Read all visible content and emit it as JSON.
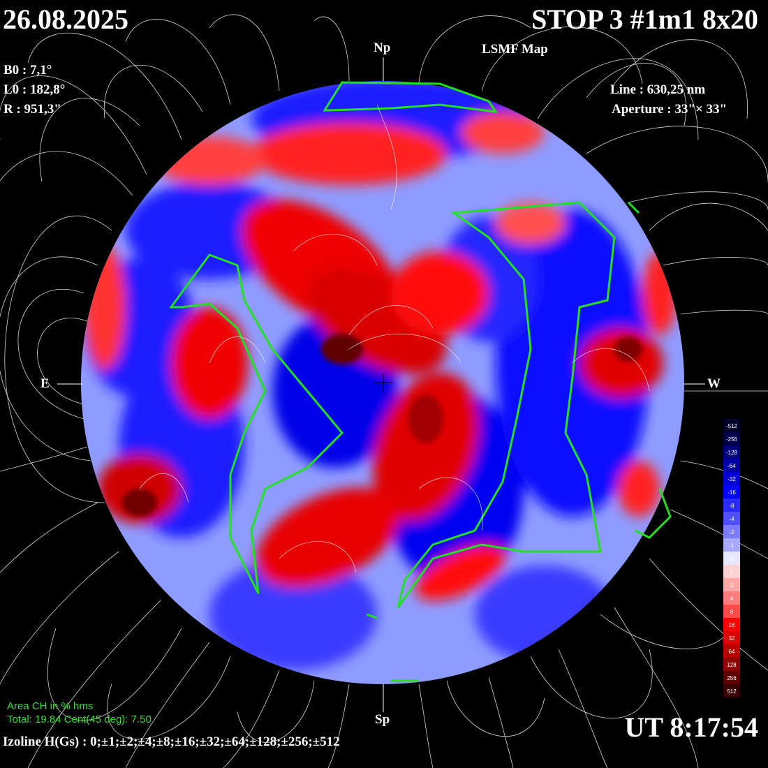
{
  "header": {
    "date": "26.08.2025",
    "title": "STOP 3 #1m1 8x20",
    "subtitle": "LSMF Map"
  },
  "params": {
    "b0": "B0 : 7,1°",
    "l0": "L0 : 182,8°",
    "r": "R  : 951,3\""
  },
  "instrument": {
    "line": "Line :  630,25 nm",
    "aperture": "Aperture : 33\"× 33\""
  },
  "directions": {
    "north": "Np",
    "south": "Sp",
    "east": "E",
    "west": "W"
  },
  "area": {
    "title": "Area CH in % hms",
    "total": "Total: 19.84    Cent(45 deg): 7.50"
  },
  "izoline": "Izoline H(Gs) : 0;±1;±2;±4;±8;±16;±32;±64;±128;±256;±512",
  "time": "UT 8:17:54",
  "colorbar": {
    "labels": [
      "-512",
      "-256",
      "-128",
      "-64",
      "-32",
      "-16",
      "-8",
      "-4",
      "-2",
      "-1",
      "0",
      "1",
      "2",
      "4",
      "8",
      "16",
      "32",
      "64",
      "128",
      "256",
      "512"
    ],
    "colors": [
      "#00002a",
      "#00004a",
      "#000078",
      "#0000a8",
      "#0000d8",
      "#0000ff",
      "#2a2aff",
      "#5050ff",
      "#7c7cff",
      "#a8a8ff",
      "#e6e6ff",
      "#ffd2d2",
      "#ffa8a8",
      "#ff7c7c",
      "#ff4a4a",
      "#ff0000",
      "#dd0000",
      "#b80000",
      "#8c0000",
      "#600000",
      "#380000"
    ]
  }
}
